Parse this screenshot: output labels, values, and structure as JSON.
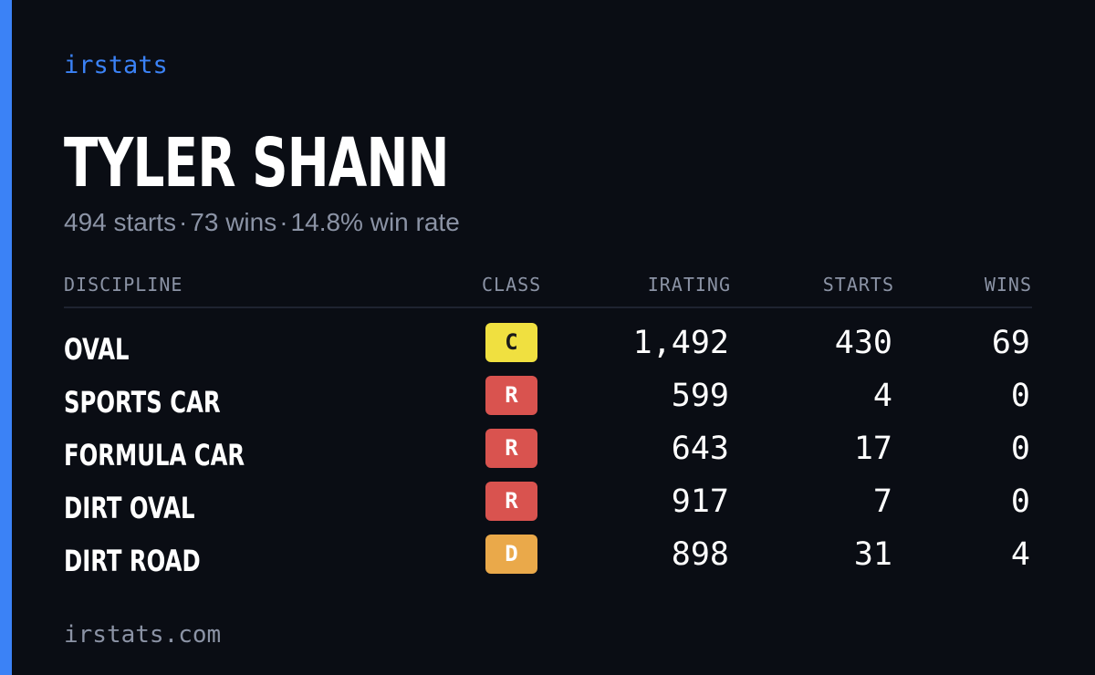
{
  "brand": "irstats",
  "driver": {
    "name": "TYLER SHANN",
    "starts": "494 starts",
    "wins": "73 wins",
    "win_rate": "14.8% win rate",
    "separator": "·"
  },
  "table": {
    "headers": {
      "discipline": "DISCIPLINE",
      "class": "CLASS",
      "irating": "IRATING",
      "starts": "STARTS",
      "wins": "WINS"
    },
    "rows": [
      {
        "discipline": "OVAL",
        "class": "C",
        "class_color": "#f0e040",
        "class_text_color": "#1a1a1a",
        "irating": "1,492",
        "starts": "430",
        "wins": "69"
      },
      {
        "discipline": "SPORTS CAR",
        "class": "R",
        "class_color": "#d9534f",
        "class_text_color": "#ffffff",
        "irating": "599",
        "starts": "4",
        "wins": "0"
      },
      {
        "discipline": "FORMULA CAR",
        "class": "R",
        "class_color": "#d9534f",
        "class_text_color": "#ffffff",
        "irating": "643",
        "starts": "17",
        "wins": "0"
      },
      {
        "discipline": "DIRT OVAL",
        "class": "R",
        "class_color": "#d9534f",
        "class_text_color": "#ffffff",
        "irating": "917",
        "starts": "7",
        "wins": "0"
      },
      {
        "discipline": "DIRT ROAD",
        "class": "D",
        "class_color": "#eaa94a",
        "class_text_color": "#ffffff",
        "irating": "898",
        "starts": "31",
        "wins": "4"
      }
    ]
  },
  "footer": "irstats.com",
  "colors": {
    "background": "#0a0d14",
    "accent": "#3b82f6",
    "muted_text": "#8b93a5"
  }
}
